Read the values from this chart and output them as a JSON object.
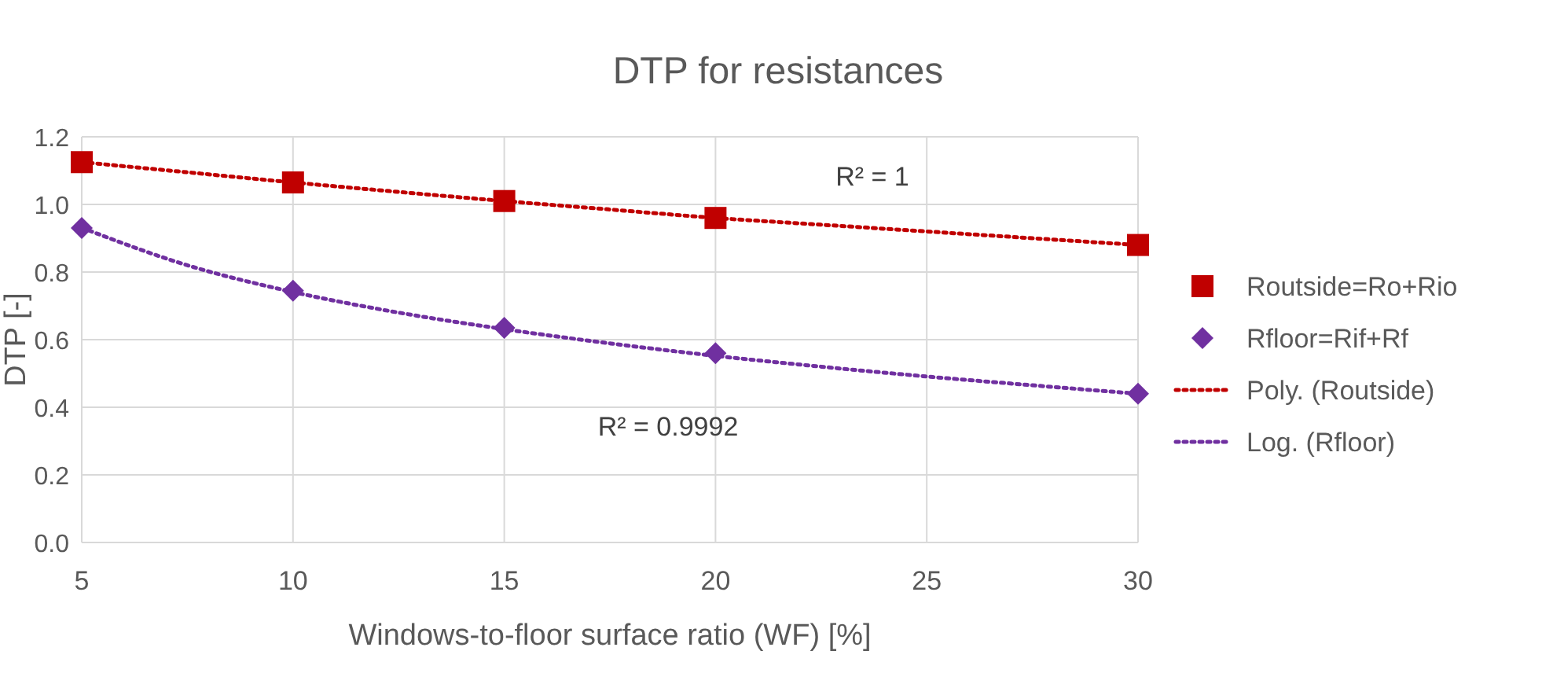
{
  "chart_data": {
    "type": "scatter",
    "title": "DTP for resistances",
    "xlabel": "Windows-to-floor surface ratio (WF) [%]",
    "ylabel": "DTP [-]",
    "xlim": [
      5,
      30
    ],
    "xticks": [
      5,
      10,
      15,
      20,
      25,
      30
    ],
    "ylim": [
      0,
      1.2
    ],
    "yticks": [
      {
        "value": 0,
        "label": "0.0"
      },
      {
        "value": 0.2,
        "label": "0.2"
      },
      {
        "value": 0.4,
        "label": "0.4"
      },
      {
        "value": 0.6,
        "label": "0.6"
      },
      {
        "value": 0.8,
        "label": "0.8"
      },
      {
        "value": 1,
        "label": "1.0"
      },
      {
        "value": 1.2,
        "label": "1.2"
      }
    ],
    "grid": true,
    "legend": "right",
    "annotations": [
      "R² = 1",
      "R² = 0.9992"
    ],
    "series": [
      {
        "name": "Routside=Ro+Rio",
        "type": "scatter",
        "marker": "square",
        "color": "#c00000",
        "x": [
          5,
          10,
          15,
          20,
          30
        ],
        "values": [
          1.125,
          1.065,
          1.01,
          0.96,
          0.88
        ]
      },
      {
        "name": "Rfloor=Rif+Rf",
        "type": "scatter",
        "marker": "diamond",
        "color": "#7030a0",
        "x": [
          5,
          10,
          15,
          20,
          30
        ],
        "values": [
          0.93,
          0.745,
          0.635,
          0.56,
          0.44
        ]
      },
      {
        "name": "Poly. (Routside)",
        "type": "line",
        "line_style": "dotted",
        "color": "#c00000",
        "x": [
          5,
          7.5,
          10,
          12.5,
          15,
          17.5,
          20,
          22.5,
          25,
          27.5,
          30
        ],
        "values": [
          1.125,
          1.095,
          1.065,
          1.037,
          1.01,
          0.985,
          0.96,
          0.94,
          0.92,
          0.9,
          0.88
        ]
      },
      {
        "name": "Log. (Rfloor)",
        "type": "line",
        "line_style": "dotted",
        "color": "#7030a0",
        "x": [
          5,
          7.5,
          10,
          12.5,
          15,
          17.5,
          20,
          22.5,
          25,
          27.5,
          30
        ],
        "values": [
          0.931,
          0.82,
          0.741,
          0.68,
          0.631,
          0.589,
          0.552,
          0.52,
          0.491,
          0.465,
          0.44
        ]
      }
    ]
  }
}
